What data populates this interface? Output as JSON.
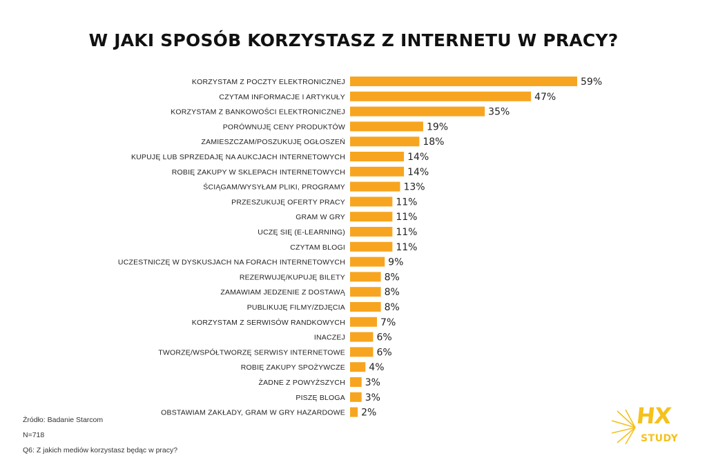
{
  "header": {
    "title": "W JAKI SPOSÓB KORZYSTASZ Z INTERNETU W PRACY?"
  },
  "colors": {
    "bar": "#f7a520",
    "logo": "#f5c11c"
  },
  "chart_data": {
    "type": "bar",
    "orientation": "horizontal",
    "title": "W JAKI SPOSÓB KORZYSTASZ Z INTERNETU W PRACY?",
    "xlabel": "",
    "ylabel": "",
    "xlim": [
      0,
      59
    ],
    "grid": false,
    "value_suffix": "%",
    "categories": [
      "KORZYSTAM Z POCZTY ELEKTRONICZNEJ",
      "CZYTAM INFORMACJE I ARTYKUŁY",
      "KORZYSTAM Z BANKOWOŚCI ELEKTRONICZNEJ",
      "PORÓWNUJĘ CENY PRODUKTÓW",
      "ZAMIESZCZAM/POSZUKUJĘ OGŁOSZEŃ",
      "KUPUJĘ LUB SPRZEDAJĘ NA AUKCJACH INTERNETOWYCH",
      "ROBIĘ ZAKUPY W SKLEPACH INTERNETOWYCH",
      "ŚCIĄGAM/WYSYŁAM PLIKI, PROGRAMY",
      "PRZESZUKUJĘ OFERTY PRACY",
      "GRAM W GRY",
      "UCZĘ SIĘ (E-LEARNING)",
      "CZYTAM BLOGI",
      "UCZESTNICZĘ W DYSKUSJACH NA FORACH INTERNETOWYCH",
      "REZERWUJĘ/KUPUJĘ BILETY",
      "ZAMAWIAM JEDZENIE Z DOSTAWĄ",
      "PUBLIKUJĘ FILMY/ZDJĘCIA",
      "KORZYSTAM Z SERWISÓW RANDKOWYCH",
      "INACZEJ",
      "TWORZĘ/WSPÓŁTWORZĘ SERWISY INTERNETOWE",
      "ROBIĘ ZAKUPY SPOŻYWCZE",
      "ŻADNE Z POWYŻSZYCH",
      "PISZĘ BLOGA",
      "OBSTAWIAM ZAKŁADY, GRAM W GRY HAZARDOWE"
    ],
    "values": [
      59,
      47,
      35,
      19,
      18,
      14,
      14,
      13,
      11,
      11,
      11,
      11,
      9,
      8,
      8,
      8,
      7,
      6,
      6,
      4,
      3,
      3,
      2
    ]
  },
  "footer": {
    "source": "Źródło: Badanie Starcom",
    "sample": "N=718",
    "question": "Q6: Z jakich mediów korzystasz będąc w pracy?"
  },
  "logo": {
    "brand": "HX",
    "sub": "STUDY"
  }
}
